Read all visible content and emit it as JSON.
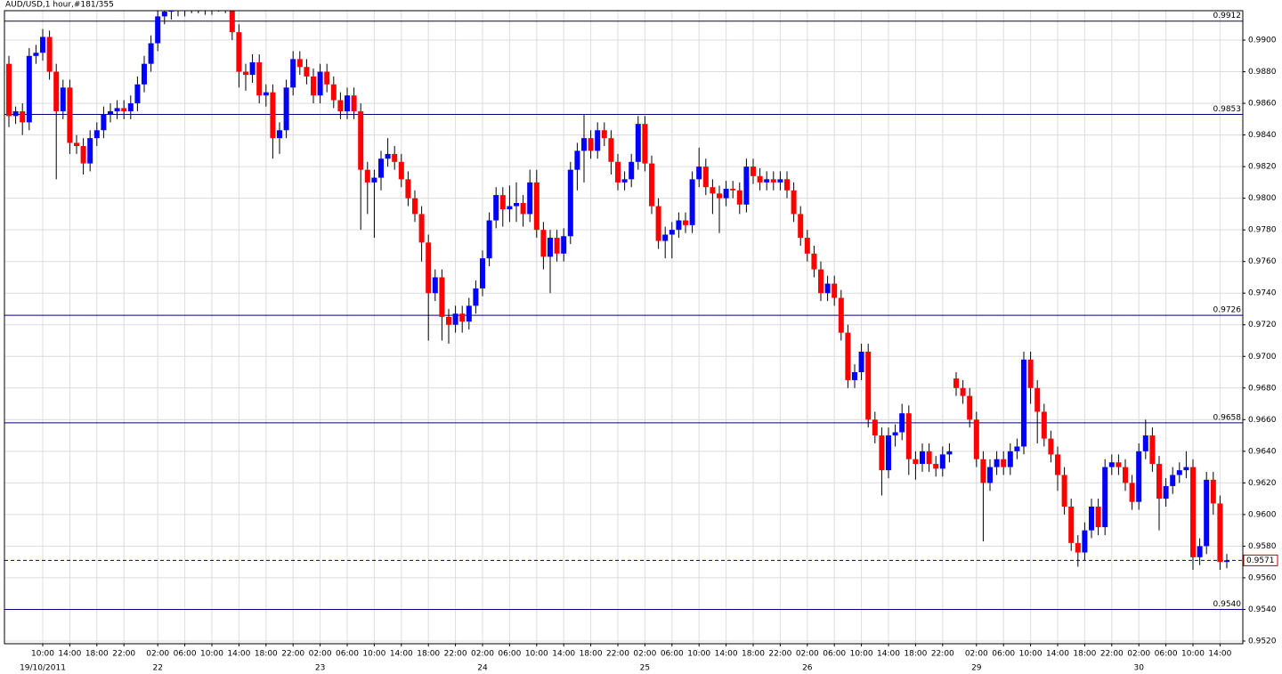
{
  "chart_data": {
    "type": "candlestick",
    "title": "AUD/USD,1 hour,#181/355",
    "up_color": "#0000ff",
    "down_color": "#ff0000",
    "wick_color": "#000000",
    "level_color": "#000080",
    "grid": true,
    "ylim": [
      0.95183,
      0.99186
    ],
    "yticks": [
      {
        "value": 0.952,
        "label": "0.9520"
      },
      {
        "value": 0.954,
        "label": "0.9540"
      },
      {
        "value": 0.956,
        "label": "0.9560"
      },
      {
        "value": 0.958,
        "label": "0.9580"
      },
      {
        "value": 0.96,
        "label": "0.9600"
      },
      {
        "value": 0.962,
        "label": "0.9620"
      },
      {
        "value": 0.964,
        "label": "0.9640"
      },
      {
        "value": 0.966,
        "label": "0.9660"
      },
      {
        "value": 0.968,
        "label": "0.9680"
      },
      {
        "value": 0.97,
        "label": "0.9700"
      },
      {
        "value": 0.972,
        "label": "0.9720"
      },
      {
        "value": 0.974,
        "label": "0.9740"
      },
      {
        "value": 0.976,
        "label": "0.9760"
      },
      {
        "value": 0.978,
        "label": "0.9780"
      },
      {
        "value": 0.98,
        "label": "0.9800"
      },
      {
        "value": 0.982,
        "label": "0.9820"
      },
      {
        "value": 0.984,
        "label": "0.9840"
      },
      {
        "value": 0.986,
        "label": "0.9860"
      },
      {
        "value": 0.988,
        "label": "0.9880"
      },
      {
        "value": 0.99,
        "label": "0.9900"
      }
    ],
    "levels": [
      0.9912,
      0.9853,
      0.9726,
      0.9658,
      {
        "value": 0.954,
        "label": "0.9540"
      }
    ],
    "current": 0.9571,
    "categories": [
      null,
      null,
      null,
      null,
      null,
      "10:00",
      null,
      null,
      null,
      "14:00",
      null,
      null,
      null,
      "18:00",
      null,
      null,
      null,
      "22:00",
      null,
      null,
      null,
      null,
      "02:00",
      null,
      null,
      null,
      "06:00",
      null,
      null,
      null,
      "10:00",
      null,
      null,
      null,
      "14:00",
      null,
      null,
      null,
      "18:00",
      null,
      null,
      null,
      "22:00",
      null,
      null,
      null,
      "02:00",
      null,
      null,
      null,
      "06:00",
      null,
      null,
      null,
      "10:00",
      null,
      null,
      null,
      "14:00",
      null,
      null,
      null,
      "18:00",
      null,
      null,
      null,
      "22:00",
      null,
      null,
      null,
      "02:00",
      null,
      null,
      null,
      "06:00",
      null,
      null,
      null,
      "10:00",
      null,
      null,
      null,
      "14:00",
      null,
      null,
      null,
      "18:00",
      null,
      null,
      null,
      "22:00",
      null,
      null,
      null,
      "02:00",
      null,
      null,
      null,
      "06:00",
      null,
      null,
      null,
      "10:00",
      null,
      null,
      null,
      "14:00",
      null,
      null,
      null,
      "18:00",
      null,
      null,
      null,
      "22:00",
      null,
      null,
      null,
      "02:00",
      null,
      null,
      null,
      "06:00",
      null,
      null,
      null,
      "10:00",
      null,
      null,
      null,
      "14:00",
      null,
      null,
      null,
      "18:00",
      null,
      null,
      null,
      "22:00",
      null,
      null,
      null,
      null,
      "02:00",
      null,
      null,
      null,
      "06:00",
      null,
      null,
      null,
      "10:00",
      null,
      null,
      null,
      "14:00",
      null,
      null,
      null,
      "18:00",
      null,
      null,
      null,
      "22:00",
      null,
      null,
      null,
      "02:00",
      null,
      null,
      null,
      "06:00",
      null,
      null,
      null,
      "10:00",
      null,
      null,
      null,
      "14:00",
      null
    ],
    "dates": [
      null,
      null,
      null,
      null,
      null,
      "19/10/2011",
      null,
      null,
      null,
      null,
      null,
      null,
      null,
      null,
      null,
      null,
      null,
      null,
      null,
      null,
      null,
      null,
      "22",
      null,
      null,
      null,
      null,
      null,
      null,
      null,
      null,
      null,
      null,
      null,
      null,
      null,
      null,
      null,
      null,
      null,
      null,
      null,
      null,
      null,
      null,
      null,
      "23",
      null,
      null,
      null,
      null,
      null,
      null,
      null,
      null,
      null,
      null,
      null,
      null,
      null,
      null,
      null,
      null,
      null,
      null,
      null,
      null,
      null,
      null,
      null,
      "24",
      null,
      null,
      null,
      null,
      null,
      null,
      null,
      null,
      null,
      null,
      null,
      null,
      null,
      null,
      null,
      null,
      null,
      null,
      null,
      null,
      null,
      null,
      null,
      "25",
      null,
      null,
      null,
      null,
      null,
      null,
      null,
      null,
      null,
      null,
      null,
      null,
      null,
      null,
      null,
      null,
      null,
      null,
      null,
      null,
      null,
      null,
      null,
      "26",
      null,
      null,
      null,
      null,
      null,
      null,
      null,
      null,
      null,
      null,
      null,
      null,
      null,
      null,
      null,
      null,
      null,
      null,
      null,
      null,
      null,
      null,
      null,
      null,
      "29",
      null,
      null,
      null,
      null,
      null,
      null,
      null,
      null,
      null,
      null,
      null,
      null,
      null,
      null,
      null,
      null,
      null,
      null,
      null,
      null,
      null,
      null,
      null,
      "30",
      null,
      null,
      null,
      null,
      null,
      null,
      null,
      null,
      null,
      null,
      null,
      null,
      null
    ],
    "open": [
      0.9885,
      0.9852,
      0.9855,
      0.9848,
      0.989,
      0.9892,
      0.9902,
      0.988,
      0.9855,
      0.987,
      0.9835,
      0.9833,
      0.9822,
      0.9838,
      0.9843,
      0.9853,
      0.9855,
      0.9857,
      0.9855,
      0.986,
      0.9872,
      0.9885,
      0.9898,
      0.9915,
      0.9918,
      0.9921,
      0.992,
      0.9923,
      0.9922,
      0.9924,
      0.9921,
      0.9923,
      0.9925,
      0.9922,
      0.9905,
      0.988,
      0.9878,
      0.9886,
      0.9865,
      0.9867,
      0.9838,
      0.9843,
      0.987,
      0.9888,
      0.9883,
      0.9877,
      0.9865,
      0.988,
      0.9872,
      0.9862,
      0.9855,
      0.9865,
      0.9855,
      0.9818,
      0.981,
      0.9813,
      0.9825,
      0.9828,
      0.9823,
      0.9812,
      0.98,
      0.979,
      0.9772,
      0.974,
      0.975,
      0.9725,
      0.972,
      0.9727,
      0.9722,
      0.9732,
      0.9743,
      0.9762,
      0.9786,
      0.9802,
      0.9793,
      0.9795,
      0.9797,
      0.979,
      0.981,
      0.978,
      0.9763,
      0.9775,
      0.9765,
      0.9776,
      0.9818,
      0.983,
      0.9838,
      0.983,
      0.9843,
      0.9838,
      0.9823,
      0.981,
      0.9812,
      0.9823,
      0.9847,
      0.9822,
      0.9795,
      0.9773,
      0.9777,
      0.978,
      0.9786,
      0.9783,
      0.9812,
      0.982,
      0.9807,
      0.9803,
      0.98,
      0.9806,
      0.9805,
      0.9796,
      0.982,
      0.9814,
      0.981,
      0.9812,
      0.981,
      0.9812,
      0.9805,
      0.979,
      0.9775,
      0.9765,
      0.9755,
      0.974,
      0.9746,
      0.9737,
      0.9715,
      0.9685,
      0.969,
      0.9703,
      0.966,
      0.965,
      0.9628,
      0.965,
      0.9652,
      0.9664,
      0.9635,
      0.9632,
      0.964,
      0.9632,
      0.9629,
      0.9638,
      0.9686,
      0.968,
      0.9675,
      0.966,
      0.9635,
      0.962,
      0.963,
      0.9635,
      0.963,
      0.964,
      0.9643,
      0.9698,
      0.968,
      0.9665,
      0.9648,
      0.9638,
      0.9625,
      0.9605,
      0.9582,
      0.9576,
      0.959,
      0.9605,
      0.9592,
      0.963,
      0.9633,
      0.963,
      0.962,
      0.9608,
      0.964,
      0.965,
      0.9632,
      0.961,
      0.9618,
      0.9625,
      0.9628,
      0.963,
      0.9573,
      0.958,
      0.9622,
      0.9607,
      0.957
    ],
    "high": [
      0.989,
      0.9858,
      0.986,
      0.9895,
      0.9897,
      0.9907,
      0.9906,
      0.9885,
      0.9875,
      0.9875,
      0.984,
      0.9838,
      0.9843,
      0.9848,
      0.9858,
      0.986,
      0.9862,
      0.9862,
      0.9865,
      0.9877,
      0.989,
      0.9903,
      0.992,
      0.9923,
      0.9926,
      0.9926,
      0.9928,
      0.9928,
      0.9929,
      0.9929,
      0.9928,
      0.993,
      0.993,
      0.9927,
      0.991,
      0.9885,
      0.9891,
      0.9891,
      0.9872,
      0.9872,
      0.9848,
      0.9875,
      0.9893,
      0.9893,
      0.9888,
      0.9882,
      0.9885,
      0.9885,
      0.9877,
      0.9867,
      0.987,
      0.987,
      0.986,
      0.9823,
      0.9818,
      0.983,
      0.9838,
      0.9833,
      0.9828,
      0.9817,
      0.9805,
      0.9795,
      0.9777,
      0.9755,
      0.9755,
      0.973,
      0.9732,
      0.9732,
      0.9737,
      0.9748,
      0.9767,
      0.9791,
      0.9807,
      0.9807,
      0.9808,
      0.981,
      0.9802,
      0.9818,
      0.9818,
      0.9785,
      0.978,
      0.978,
      0.9781,
      0.9823,
      0.9835,
      0.9853,
      0.9843,
      0.9848,
      0.9848,
      0.9843,
      0.9828,
      0.9817,
      0.9828,
      0.9852,
      0.9852,
      0.9827,
      0.98,
      0.9782,
      0.9785,
      0.9791,
      0.9791,
      0.9817,
      0.9832,
      0.9825,
      0.9812,
      0.9808,
      0.9811,
      0.9811,
      0.981,
      0.9825,
      0.9825,
      0.9819,
      0.9817,
      0.9817,
      0.9817,
      0.9817,
      0.981,
      0.9795,
      0.978,
      0.977,
      0.976,
      0.9751,
      0.9751,
      0.9742,
      0.972,
      0.9695,
      0.9708,
      0.9708,
      0.9665,
      0.9655,
      0.9655,
      0.9657,
      0.967,
      0.9669,
      0.964,
      0.9645,
      0.9645,
      0.9637,
      0.9643,
      0.9645,
      0.969,
      0.9685,
      0.968,
      0.9665,
      0.964,
      0.9635,
      0.964,
      0.964,
      0.9645,
      0.9648,
      0.9703,
      0.9703,
      0.9685,
      0.967,
      0.9653,
      0.9643,
      0.963,
      0.961,
      0.9587,
      0.9595,
      0.961,
      0.961,
      0.9635,
      0.9638,
      0.9638,
      0.9635,
      0.9625,
      0.9645,
      0.966,
      0.9655,
      0.9637,
      0.9623,
      0.963,
      0.9633,
      0.964,
      0.9635,
      0.9585,
      0.9627,
      0.9627,
      0.9612,
      0.9575
    ],
    "low": [
      0.9845,
      0.9847,
      0.984,
      0.9843,
      0.9885,
      0.9887,
      0.9875,
      0.9812,
      0.985,
      0.9828,
      0.9828,
      0.9815,
      0.9817,
      0.9833,
      0.9838,
      0.9848,
      0.985,
      0.985,
      0.985,
      0.9855,
      0.9867,
      0.988,
      0.9893,
      0.991,
      0.9913,
      0.9915,
      0.9915,
      0.9917,
      0.9917,
      0.9916,
      0.9916,
      0.9918,
      0.9917,
      0.99,
      0.987,
      0.9868,
      0.9873,
      0.986,
      0.9858,
      0.9825,
      0.9828,
      0.9838,
      0.9865,
      0.9878,
      0.9872,
      0.986,
      0.986,
      0.9867,
      0.9857,
      0.985,
      0.985,
      0.985,
      0.978,
      0.979,
      0.9775,
      0.9805,
      0.982,
      0.9818,
      0.9807,
      0.9795,
      0.9785,
      0.976,
      0.971,
      0.9735,
      0.971,
      0.9708,
      0.9715,
      0.9715,
      0.9717,
      0.9727,
      0.9738,
      0.9757,
      0.9781,
      0.9782,
      0.9785,
      0.9785,
      0.9782,
      0.9785,
      0.9775,
      0.9755,
      0.974,
      0.976,
      0.976,
      0.9771,
      0.9805,
      0.981,
      0.9825,
      0.9825,
      0.9833,
      0.9815,
      0.9805,
      0.9805,
      0.9807,
      0.9818,
      0.9817,
      0.979,
      0.9768,
      0.9762,
      0.9762,
      0.9775,
      0.9778,
      0.9778,
      0.9807,
      0.9802,
      0.979,
      0.9778,
      0.9795,
      0.98,
      0.979,
      0.9791,
      0.9809,
      0.9805,
      0.9805,
      0.9805,
      0.9805,
      0.98,
      0.9785,
      0.977,
      0.976,
      0.975,
      0.9735,
      0.9735,
      0.9732,
      0.971,
      0.968,
      0.968,
      0.9685,
      0.9655,
      0.9645,
      0.9612,
      0.9623,
      0.9643,
      0.9647,
      0.9625,
      0.9622,
      0.9627,
      0.9627,
      0.9624,
      0.9624,
      0.9633,
      0.9675,
      0.967,
      0.9655,
      0.963,
      0.9583,
      0.9615,
      0.9625,
      0.9625,
      0.9625,
      0.9635,
      0.9638,
      0.967,
      0.9645,
      0.9643,
      0.9633,
      0.9615,
      0.96,
      0.9577,
      0.9567,
      0.9571,
      0.9585,
      0.9587,
      0.9587,
      0.9625,
      0.9625,
      0.9615,
      0.9603,
      0.9603,
      0.9635,
      0.9627,
      0.959,
      0.9605,
      0.9613,
      0.962,
      0.9623,
      0.9565,
      0.9568,
      0.9575,
      0.96,
      0.9565,
      0.9566
    ],
    "close": [
      0.9852,
      0.9855,
      0.9848,
      0.989,
      0.9892,
      0.9902,
      0.988,
      0.9855,
      0.987,
      0.9835,
      0.9833,
      0.9822,
      0.9838,
      0.9843,
      0.9853,
      0.9855,
      0.9857,
      0.9855,
      0.986,
      0.9872,
      0.9885,
      0.9898,
      0.9915,
      0.9918,
      0.9921,
      0.992,
      0.9923,
      0.9922,
      0.9924,
      0.9921,
      0.9923,
      0.9925,
      0.9922,
      0.9905,
      0.988,
      0.9878,
      0.9886,
      0.9865,
      0.9867,
      0.9838,
      0.9843,
      0.987,
      0.9888,
      0.9883,
      0.9877,
      0.9865,
      0.988,
      0.9872,
      0.9862,
      0.9855,
      0.9865,
      0.9855,
      0.9818,
      0.981,
      0.9813,
      0.9825,
      0.9828,
      0.9823,
      0.9812,
      0.98,
      0.979,
      0.9772,
      0.974,
      0.975,
      0.9725,
      0.972,
      0.9727,
      0.9722,
      0.9732,
      0.9743,
      0.9762,
      0.9786,
      0.9802,
      0.9793,
      0.9795,
      0.9797,
      0.979,
      0.981,
      0.978,
      0.9763,
      0.9775,
      0.9765,
      0.9776,
      0.9818,
      0.983,
      0.9838,
      0.983,
      0.9843,
      0.9838,
      0.9823,
      0.981,
      0.9812,
      0.9823,
      0.9847,
      0.9822,
      0.9795,
      0.9773,
      0.9777,
      0.978,
      0.9786,
      0.9783,
      0.9812,
      0.982,
      0.9807,
      0.9803,
      0.98,
      0.9806,
      0.9805,
      0.9796,
      0.982,
      0.9814,
      0.981,
      0.9812,
      0.981,
      0.9812,
      0.9805,
      0.979,
      0.9775,
      0.9765,
      0.9755,
      0.974,
      0.9746,
      0.9737,
      0.9715,
      0.9685,
      0.969,
      0.9703,
      0.966,
      0.965,
      0.9628,
      0.965,
      0.9652,
      0.9664,
      0.9635,
      0.9632,
      0.964,
      0.9632,
      0.9629,
      0.9638,
      0.964,
      0.968,
      0.9675,
      0.966,
      0.9635,
      0.962,
      0.963,
      0.9635,
      0.963,
      0.964,
      0.9643,
      0.9698,
      0.968,
      0.9665,
      0.9648,
      0.9638,
      0.9625,
      0.9605,
      0.9582,
      0.9576,
      0.959,
      0.9605,
      0.9592,
      0.963,
      0.9633,
      0.963,
      0.962,
      0.9608,
      0.964,
      0.965,
      0.9632,
      0.961,
      0.9618,
      0.9625,
      0.9628,
      0.963,
      0.9573,
      0.958,
      0.9622,
      0.9607,
      0.957,
      0.9571
    ]
  }
}
